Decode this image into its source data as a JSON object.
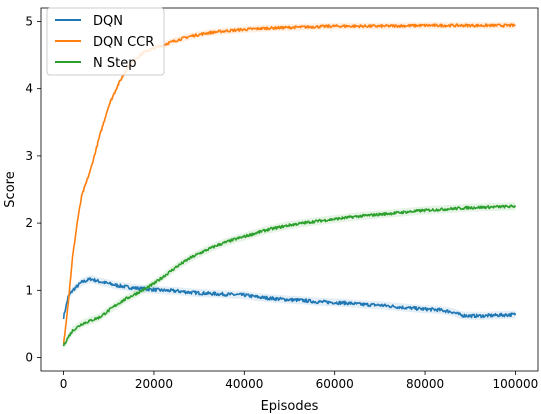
{
  "chart_data": {
    "type": "line",
    "title": "",
    "xlabel": "Episodes",
    "ylabel": "Score",
    "xlim": [
      -5000,
      105000
    ],
    "ylim": [
      -0.2,
      5.2
    ],
    "x_ticks": [
      0,
      20000,
      40000,
      60000,
      80000,
      100000
    ],
    "x_tick_labels": [
      "0",
      "20000",
      "40000",
      "60000",
      "80000",
      "100000"
    ],
    "y_ticks": [
      0,
      1,
      2,
      3,
      4,
      5
    ],
    "y_tick_labels": [
      "0",
      "1",
      "2",
      "3",
      "4",
      "5"
    ],
    "grid": false,
    "legend_position": "top-left",
    "series": [
      {
        "name": "DQN",
        "color": "#1f77b4",
        "x": [
          0,
          1000,
          2000,
          4000,
          6000,
          8000,
          10000,
          12000,
          15000,
          18000,
          20000,
          22000,
          25000,
          28000,
          30000,
          33000,
          36000,
          40000,
          43000,
          46000,
          50000,
          53000,
          56000,
          60000,
          63000,
          66000,
          70000,
          73000,
          76000,
          80000,
          83000,
          86000,
          88000,
          90000,
          93000,
          96000,
          100000
        ],
        "y": [
          0.6,
          0.9,
          1.0,
          1.12,
          1.17,
          1.13,
          1.1,
          1.07,
          1.04,
          1.02,
          1.01,
          1.0,
          0.99,
          0.97,
          0.96,
          0.95,
          0.94,
          0.93,
          0.9,
          0.88,
          0.86,
          0.85,
          0.83,
          0.82,
          0.81,
          0.79,
          0.78,
          0.76,
          0.74,
          0.72,
          0.71,
          0.68,
          0.63,
          0.62,
          0.62,
          0.63,
          0.64
        ]
      },
      {
        "name": "DQN CCR",
        "color": "#ff7f0e",
        "x": [
          0,
          1000,
          2000,
          3000,
          4000,
          6000,
          8000,
          10000,
          12000,
          14000,
          16000,
          18000,
          20000,
          22000,
          25000,
          28000,
          32000,
          36000,
          40000,
          45000,
          50000,
          55000,
          60000,
          70000,
          80000,
          90000,
          100000
        ],
        "y": [
          0.2,
          0.8,
          1.5,
          2.0,
          2.4,
          2.8,
          3.3,
          3.75,
          4.05,
          4.3,
          4.45,
          4.55,
          4.6,
          4.65,
          4.72,
          4.78,
          4.83,
          4.86,
          4.88,
          4.9,
          4.91,
          4.92,
          4.93,
          4.93,
          4.94,
          4.94,
          4.94
        ]
      },
      {
        "name": "N Step",
        "color": "#2ca02c",
        "x": [
          0,
          1000,
          2000,
          4000,
          6000,
          8000,
          10000,
          12000,
          14000,
          16000,
          18000,
          20000,
          22000,
          25000,
          28000,
          31000,
          34000,
          37000,
          40000,
          45000,
          50000,
          55000,
          60000,
          65000,
          70000,
          75000,
          80000,
          85000,
          90000,
          95000,
          100000
        ],
        "y": [
          0.18,
          0.3,
          0.4,
          0.5,
          0.55,
          0.6,
          0.7,
          0.8,
          0.88,
          0.95,
          1.02,
          1.1,
          1.2,
          1.35,
          1.48,
          1.58,
          1.67,
          1.74,
          1.8,
          1.9,
          1.97,
          2.02,
          2.06,
          2.1,
          2.13,
          2.16,
          2.19,
          2.21,
          2.23,
          2.24,
          2.25
        ]
      }
    ]
  }
}
